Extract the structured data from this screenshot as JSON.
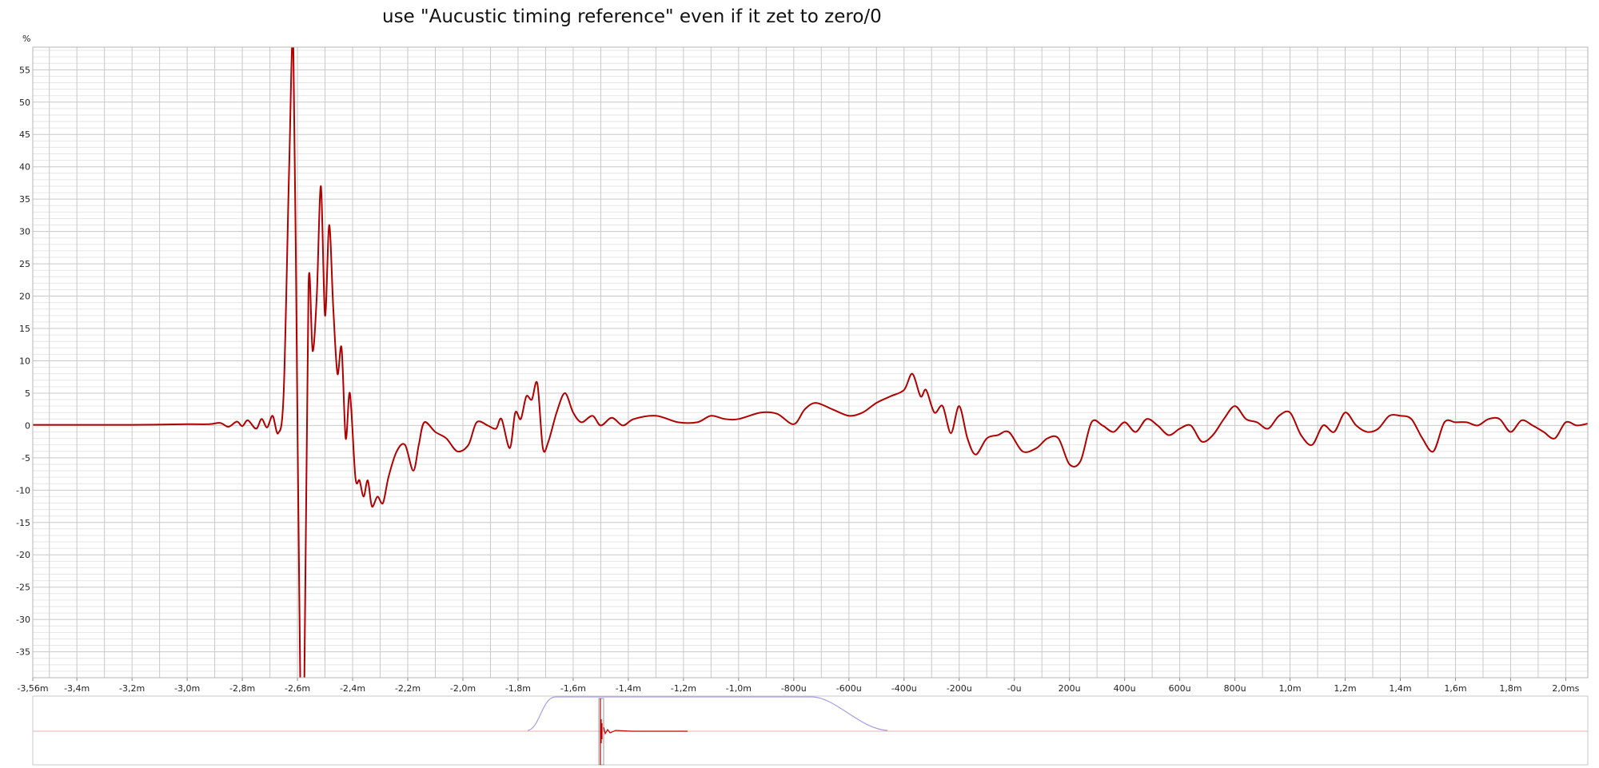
{
  "chart_data": {
    "type": "line",
    "title": "use \"Aucustic timing reference\" even if it zet to zero/0",
    "ylabel": "%",
    "xlabel": "",
    "xlim": [
      -3.56,
      2.08
    ],
    "ylim": [
      -39,
      58.5
    ],
    "grid": true,
    "colors": {
      "line": "#b00000",
      "grid_major": "#c8c8c8",
      "grid_minor": "#e6e6e6",
      "window": "#a090e0",
      "overview_axis": "#e0a0a0"
    },
    "y_ticks": [
      {
        "v": 55,
        "label": "55"
      },
      {
        "v": 50,
        "label": "50"
      },
      {
        "v": 45,
        "label": "45"
      },
      {
        "v": 40,
        "label": "40"
      },
      {
        "v": 35,
        "label": "35"
      },
      {
        "v": 30,
        "label": "30"
      },
      {
        "v": 25,
        "label": "25"
      },
      {
        "v": 20,
        "label": "20"
      },
      {
        "v": 15,
        "label": "15"
      },
      {
        "v": 10,
        "label": "10"
      },
      {
        "v": 5,
        "label": "5"
      },
      {
        "v": 0,
        "label": "0"
      },
      {
        "v": -5,
        "label": "-5"
      },
      {
        "v": -10,
        "label": "-10"
      },
      {
        "v": -15,
        "label": "-15"
      },
      {
        "v": -20,
        "label": "-20"
      },
      {
        "v": -25,
        "label": "-25"
      },
      {
        "v": -30,
        "label": "-30"
      },
      {
        "v": -35,
        "label": "-35"
      }
    ],
    "x_ticks": [
      {
        "v": -3.56,
        "label": "-3,56m"
      },
      {
        "v": -3.4,
        "label": "-3,4m"
      },
      {
        "v": -3.2,
        "label": "-3,2m"
      },
      {
        "v": -3.0,
        "label": "-3,0m"
      },
      {
        "v": -2.8,
        "label": "-2,8m"
      },
      {
        "v": -2.6,
        "label": "-2,6m"
      },
      {
        "v": -2.4,
        "label": "-2,4m"
      },
      {
        "v": -2.2,
        "label": "-2,2m"
      },
      {
        "v": -2.0,
        "label": "-2,0m"
      },
      {
        "v": -1.8,
        "label": "-1,8m"
      },
      {
        "v": -1.6,
        "label": "-1,6m"
      },
      {
        "v": -1.4,
        "label": "-1,4m"
      },
      {
        "v": -1.2,
        "label": "-1,2m"
      },
      {
        "v": -1.0,
        "label": "-1,0m"
      },
      {
        "v": -0.8,
        "label": "-800u"
      },
      {
        "v": -0.6,
        "label": "-600u"
      },
      {
        "v": -0.4,
        "label": "-400u"
      },
      {
        "v": -0.2,
        "label": "-200u"
      },
      {
        "v": 0.0,
        "label": "-0u"
      },
      {
        "v": 0.2,
        "label": "200u"
      },
      {
        "v": 0.4,
        "label": "400u"
      },
      {
        "v": 0.6,
        "label": "600u"
      },
      {
        "v": 0.8,
        "label": "800u"
      },
      {
        "v": 1.0,
        "label": "1,0m"
      },
      {
        "v": 1.2,
        "label": "1,2m"
      },
      {
        "v": 1.4,
        "label": "1,4m"
      },
      {
        "v": 1.6,
        "label": "1,6m"
      },
      {
        "v": 1.8,
        "label": "1,8m"
      },
      {
        "v": 2.0,
        "label": "2,0ms"
      }
    ],
    "series": [
      {
        "name": "",
        "points": [
          [
            -3.56,
            0.1
          ],
          [
            -3.4,
            0.1
          ],
          [
            -3.2,
            0.1
          ],
          [
            -3.0,
            0.2
          ],
          [
            -2.92,
            0.2
          ],
          [
            -2.88,
            0.4
          ],
          [
            -2.85,
            -0.2
          ],
          [
            -2.82,
            0.6
          ],
          [
            -2.8,
            -0.1
          ],
          [
            -2.78,
            0.8
          ],
          [
            -2.75,
            -0.5
          ],
          [
            -2.73,
            1.0
          ],
          [
            -2.71,
            -0.3
          ],
          [
            -2.69,
            1.5
          ],
          [
            -2.67,
            -1.2
          ],
          [
            -2.65,
            5.0
          ],
          [
            -2.63,
            40.0
          ],
          [
            -2.615,
            58.5
          ],
          [
            -2.6,
            0.0
          ],
          [
            -2.59,
            -39.0
          ],
          [
            -2.575,
            -39.0
          ],
          [
            -2.56,
            21.5
          ],
          [
            -2.545,
            11.5
          ],
          [
            -2.53,
            20.0
          ],
          [
            -2.515,
            37.0
          ],
          [
            -2.5,
            17.0
          ],
          [
            -2.485,
            31.0
          ],
          [
            -2.47,
            18.0
          ],
          [
            -2.455,
            8.0
          ],
          [
            -2.44,
            12.0
          ],
          [
            -2.425,
            -2.0
          ],
          [
            -2.41,
            5.0
          ],
          [
            -2.39,
            -8.0
          ],
          [
            -2.375,
            -8.5
          ],
          [
            -2.36,
            -11.0
          ],
          [
            -2.345,
            -8.5
          ],
          [
            -2.33,
            -12.5
          ],
          [
            -2.31,
            -11.0
          ],
          [
            -2.29,
            -12.0
          ],
          [
            -2.27,
            -8.0
          ],
          [
            -2.24,
            -4.0
          ],
          [
            -2.21,
            -3.0
          ],
          [
            -2.18,
            -7.0
          ],
          [
            -2.16,
            -3.0
          ],
          [
            -2.14,
            0.5
          ],
          [
            -2.1,
            -1.0
          ],
          [
            -2.06,
            -2.0
          ],
          [
            -2.02,
            -4.0
          ],
          [
            -1.98,
            -3.0
          ],
          [
            -1.95,
            0.5
          ],
          [
            -1.91,
            0.0
          ],
          [
            -1.88,
            -0.5
          ],
          [
            -1.86,
            1.0
          ],
          [
            -1.83,
            -3.5
          ],
          [
            -1.81,
            2.0
          ],
          [
            -1.79,
            1.0
          ],
          [
            -1.77,
            4.5
          ],
          [
            -1.75,
            4.0
          ],
          [
            -1.73,
            6.5
          ],
          [
            -1.71,
            -3.5
          ],
          [
            -1.69,
            -2.5
          ],
          [
            -1.66,
            2.0
          ],
          [
            -1.63,
            5.0
          ],
          [
            -1.6,
            2.0
          ],
          [
            -1.57,
            0.5
          ],
          [
            -1.53,
            1.5
          ],
          [
            -1.5,
            0.0
          ],
          [
            -1.46,
            1.2
          ],
          [
            -1.42,
            0.0
          ],
          [
            -1.38,
            1.0
          ],
          [
            -1.3,
            1.5
          ],
          [
            -1.22,
            0.5
          ],
          [
            -1.15,
            0.5
          ],
          [
            -1.1,
            1.5
          ],
          [
            -1.05,
            1.0
          ],
          [
            -1.0,
            1.0
          ],
          [
            -0.92,
            2.0
          ],
          [
            -0.86,
            1.8
          ],
          [
            -0.8,
            0.2
          ],
          [
            -0.76,
            2.5
          ],
          [
            -0.72,
            3.5
          ],
          [
            -0.66,
            2.5
          ],
          [
            -0.6,
            1.5
          ],
          [
            -0.55,
            2.0
          ],
          [
            -0.5,
            3.5
          ],
          [
            -0.45,
            4.5
          ],
          [
            -0.4,
            5.5
          ],
          [
            -0.37,
            8.0
          ],
          [
            -0.34,
            4.5
          ],
          [
            -0.32,
            5.5
          ],
          [
            -0.29,
            2.0
          ],
          [
            -0.26,
            3.0
          ],
          [
            -0.23,
            -1.2
          ],
          [
            -0.2,
            3.0
          ],
          [
            -0.17,
            -2.0
          ],
          [
            -0.14,
            -4.5
          ],
          [
            -0.1,
            -2.0
          ],
          [
            -0.06,
            -1.5
          ],
          [
            -0.02,
            -1.0
          ],
          [
            0.03,
            -4.0
          ],
          [
            0.08,
            -3.5
          ],
          [
            0.12,
            -2.0
          ],
          [
            0.16,
            -2.0
          ],
          [
            0.2,
            -6.0
          ],
          [
            0.24,
            -5.5
          ],
          [
            0.28,
            0.5
          ],
          [
            0.32,
            0.0
          ],
          [
            0.36,
            -1.0
          ],
          [
            0.4,
            0.5
          ],
          [
            0.44,
            -1.0
          ],
          [
            0.48,
            1.0
          ],
          [
            0.52,
            0.0
          ],
          [
            0.56,
            -1.5
          ],
          [
            0.6,
            -0.5
          ],
          [
            0.64,
            0.0
          ],
          [
            0.68,
            -2.5
          ],
          [
            0.72,
            -1.5
          ],
          [
            0.76,
            1.0
          ],
          [
            0.8,
            3.0
          ],
          [
            0.84,
            1.0
          ],
          [
            0.88,
            0.5
          ],
          [
            0.92,
            -0.5
          ],
          [
            0.96,
            1.5
          ],
          [
            1.0,
            2.0
          ],
          [
            1.04,
            -1.5
          ],
          [
            1.08,
            -3.0
          ],
          [
            1.12,
            0.0
          ],
          [
            1.16,
            -1.0
          ],
          [
            1.2,
            2.0
          ],
          [
            1.24,
            0.0
          ],
          [
            1.28,
            -1.0
          ],
          [
            1.32,
            -0.5
          ],
          [
            1.36,
            1.5
          ],
          [
            1.4,
            1.5
          ],
          [
            1.44,
            1.0
          ],
          [
            1.48,
            -2.0
          ],
          [
            1.52,
            -4.0
          ],
          [
            1.56,
            0.5
          ],
          [
            1.6,
            0.5
          ],
          [
            1.64,
            0.5
          ],
          [
            1.68,
            0.0
          ],
          [
            1.72,
            1.0
          ],
          [
            1.76,
            1.0
          ],
          [
            1.8,
            -1.0
          ],
          [
            1.84,
            0.8
          ],
          [
            1.88,
            0.0
          ],
          [
            1.92,
            -1.0
          ],
          [
            1.96,
            -2.0
          ],
          [
            2.0,
            0.5
          ],
          [
            2.04,
            0.0
          ],
          [
            2.08,
            0.3
          ]
        ]
      }
    ]
  }
}
